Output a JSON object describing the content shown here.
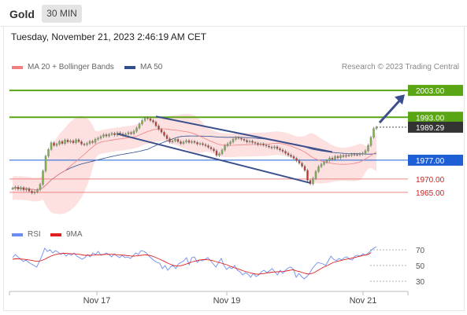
{
  "header": {
    "symbol": "Gold",
    "timeframe": "30 MIN"
  },
  "datetime": "Tuesday, November 21, 2023 2:46:19 AM CET",
  "legend": {
    "ma20_label": "MA 20 + Bollinger Bands",
    "ma50_label": "MA 50",
    "credit": "Research © 2023 Trading Central",
    "rsi_label": "RSI",
    "rsi_ma_label": "9MA"
  },
  "colors": {
    "ma20": "#f08080",
    "ma50": "#2f4f8f",
    "bollinger_fill": "#fde1e1",
    "candle": "#7a7a7a",
    "candle_up": "#7fb34b",
    "candle_down": "#c0392b",
    "trendline": "#3b4f8c",
    "resistance": "#5aa513",
    "pivot": "#1f5fd6",
    "support": "#f08585",
    "last_price_bg": "#333333",
    "rsi": "#6b8cf0",
    "rsi_ma": "#e02020"
  },
  "chart_data": [
    {
      "type": "candlestick",
      "x_labels": [
        "Nov 17",
        "Nov 19",
        "Nov 21"
      ],
      "y_range": [
        1960,
        2008
      ],
      "last_price": 1989.29,
      "levels": [
        {
          "value": 2003.0,
          "label": "2003.00",
          "kind": "resistance"
        },
        {
          "value": 1993.0,
          "label": "1993.00",
          "kind": "resistance"
        },
        {
          "value": 1977.0,
          "label": "1977.00",
          "kind": "pivot"
        },
        {
          "value": 1970.0,
          "label": "1970.00",
          "kind": "support"
        },
        {
          "value": 1965.0,
          "label": "1965.00",
          "kind": "support"
        }
      ],
      "last_price_label": "1989.29",
      "series": [
        {
          "name": "MA 20 + Bollinger Bands"
        },
        {
          "name": "MA 50"
        }
      ],
      "candles": {
        "close": [
          1966.5,
          1967,
          1966.2,
          1966.8,
          1965.9,
          1966.4,
          1965.5,
          1964.8,
          1965.2,
          1966,
          1968,
          1973,
          1978.5,
          1981,
          1983.5,
          1982.5,
          1983,
          1984,
          1983.2,
          1984.5,
          1983.8,
          1984.2,
          1983.5,
          1984.6,
          1983.9,
          1983,
          1982.8,
          1983.2,
          1984,
          1983.6,
          1984.8,
          1985.2,
          1985.8,
          1986.5,
          1986,
          1986.6,
          1987,
          1986.4,
          1987.2,
          1986.8,
          1986.2,
          1986.7,
          1987.3,
          1986.9,
          1987.8,
          1989,
          1990.5,
          1991.8,
          1992.8,
          1992.5,
          1991.8,
          1991.2,
          1989.8,
          1988.5,
          1987.4,
          1986.2,
          1985,
          1983.8,
          1984.2,
          1984.8,
          1983.9,
          1983.2,
          1983.8,
          1984.3,
          1983.6,
          1984,
          1983.6,
          1983,
          1983.2,
          1982.8,
          1982.4,
          1981.8,
          1981.2,
          1980.5,
          1978.8,
          1979.4,
          1980.8,
          1982.4,
          1983.1,
          1983.8,
          1984.8,
          1985.5,
          1985.2,
          1984.8,
          1984.4,
          1983.8,
          1984.1,
          1983.6,
          1983.3,
          1982.8,
          1983.1,
          1982.6,
          1982.3,
          1981.9,
          1981.6,
          1982,
          1981.3,
          1980.8,
          1980.3,
          1979.6,
          1978.9,
          1978.4,
          1977.7,
          1976.8,
          1975.9,
          1974.7,
          1973.2,
          1969.5,
          1968.2,
          1970.2,
          1972.8,
          1974.6,
          1975.5,
          1976.3,
          1976.8,
          1977.8,
          1977.3,
          1978.4,
          1977.9,
          1978.7,
          1978.4,
          1978.9,
          1978.8,
          1979.2,
          1979.1,
          1979,
          1979.3,
          1979.6,
          1980.5,
          1982.5,
          1985.5,
          1988.8,
          1989.3
        ]
      },
      "trend_channel": {
        "upper": [
          [
            1993.3,
            1980.0
          ]
        ],
        "lower": [
          [
            1986.8,
            1968.5
          ]
        ]
      },
      "arrow": {
        "from": 1991.0,
        "to": 2001.5
      }
    },
    {
      "type": "line",
      "title": "RSI",
      "y_ticks": [
        70,
        50,
        30
      ],
      "series": [
        {
          "name": "RSI",
          "values": [
            60,
            64,
            61,
            58,
            55,
            57,
            54,
            52,
            50,
            48,
            55,
            63,
            72,
            68,
            70,
            66,
            69,
            67,
            64,
            66,
            62,
            65,
            63,
            66,
            62,
            60,
            58,
            60,
            64,
            61,
            66,
            64,
            68,
            63,
            64,
            66,
            64,
            61,
            65,
            62,
            60,
            63,
            60,
            61,
            59,
            62,
            66,
            64,
            69,
            68,
            66,
            62,
            59,
            56,
            54,
            53,
            46,
            50,
            44,
            48,
            50,
            46,
            52,
            54,
            56,
            60,
            51,
            60,
            61,
            54,
            57,
            56,
            58,
            60,
            56,
            52,
            48,
            54,
            59,
            50,
            45,
            48,
            46,
            50,
            44,
            42,
            38,
            41,
            39,
            35,
            40,
            36,
            38,
            42,
            44,
            41,
            43,
            46,
            42,
            38,
            44,
            40,
            44,
            47,
            48,
            45,
            35,
            40,
            36,
            33,
            36,
            40,
            46,
            50,
            54,
            53,
            52,
            50,
            56,
            62,
            58,
            56,
            59,
            57,
            60,
            61,
            58,
            57,
            62,
            63,
            62,
            65,
            63,
            66,
            69,
            72,
            74
          ]
        },
        {
          "name": "9MA",
          "values": [
            58,
            58.5,
            58.5,
            58.3,
            58,
            57.6,
            57.2,
            56.6,
            55.9,
            55.4,
            55.6,
            56.5,
            58,
            59.8,
            61.5,
            62.8,
            64,
            64.7,
            65.2,
            65.5,
            65.4,
            65.2,
            65,
            64.9,
            64.6,
            64.2,
            63.5,
            63,
            63,
            63,
            63.2,
            63.3,
            63.6,
            63.8,
            64,
            64.2,
            64.3,
            64.2,
            64,
            63.8,
            63.6,
            63.3,
            63,
            62.6,
            62.2,
            62,
            62.2,
            62.5,
            63,
            63.4,
            63.5,
            63,
            62.2,
            61,
            59.5,
            58,
            56.5,
            54.8,
            53,
            51.5,
            50.2,
            49.5,
            49.3,
            49.8,
            50.8,
            52,
            53.2,
            54.5,
            55.5,
            56.2,
            57,
            57.4,
            57.5,
            57.3,
            56.8,
            56,
            55,
            54,
            53,
            52,
            51,
            49.5,
            48.3,
            47,
            45.9,
            44.8,
            43.5,
            42.5,
            41.5,
            40.5,
            39.7,
            39,
            39,
            39.4,
            39.8,
            40.4,
            41,
            41.5,
            41.8,
            42,
            42.2,
            42.3,
            42.8,
            43.5,
            44.2,
            44.5,
            43.2,
            42.5,
            41.5,
            40.3,
            39.5,
            39.2,
            40,
            41.5,
            43.5,
            45.5,
            47.5,
            49,
            50.5,
            52.5,
            54,
            55,
            55.8,
            56.5,
            57.5,
            58.2,
            58.8,
            59.5,
            60.3,
            61.2,
            62,
            62.8,
            63.5,
            64.2,
            66.5
          ]
        }
      ]
    }
  ]
}
